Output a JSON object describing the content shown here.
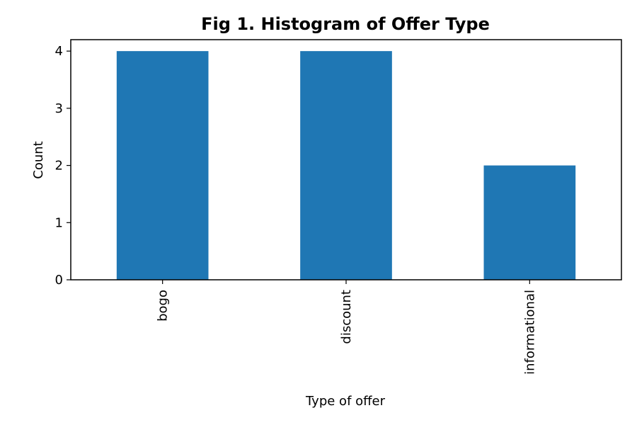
{
  "chart_data": {
    "type": "bar",
    "title": "Fig 1. Histogram of Offer Type",
    "xlabel": "Type of offer",
    "ylabel": "Count",
    "categories": [
      "bogo",
      "discount",
      "informational"
    ],
    "values": [
      4,
      4,
      2
    ],
    "ylim": [
      0,
      4.2
    ],
    "yticks": [
      0,
      1,
      2,
      3,
      4
    ],
    "bar_color": "#1f77b4",
    "grid": false,
    "legend": "none",
    "x_tick_rotation": "vertical"
  }
}
